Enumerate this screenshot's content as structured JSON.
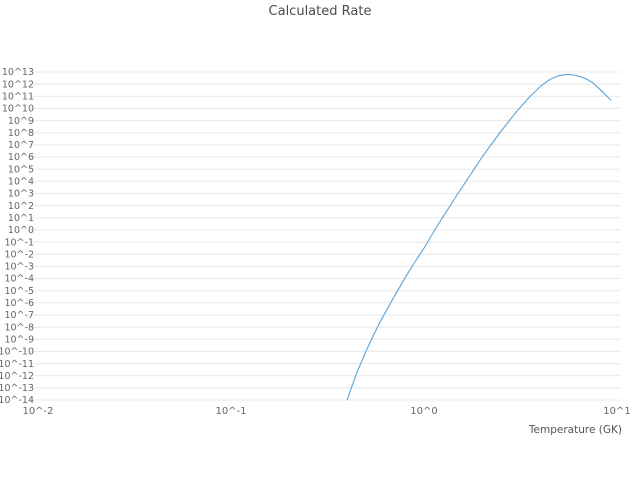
{
  "title": "Calculated Rate",
  "chart_data": {
    "type": "line",
    "title": "Calculated Rate",
    "xlabel": "Temperature (GK)",
    "ylabel": "",
    "x_scale": "log",
    "y_scale": "log",
    "x_exp_range": [
      -2,
      1
    ],
    "y_exp_range": [
      -14,
      13
    ],
    "x_tick_exponents": [
      -2,
      -1,
      0,
      1
    ],
    "x_tick_labels": [
      "10^-2",
      "10^-1",
      "10^0",
      "10^1"
    ],
    "y_tick_exponents": [
      13,
      12,
      11,
      10,
      9,
      8,
      7,
      6,
      5,
      4,
      3,
      2,
      1,
      0,
      -1,
      -2,
      -3,
      -4,
      -5,
      -6,
      -7,
      -8,
      -9,
      -10,
      -11,
      -12,
      -13,
      -14
    ],
    "grid": {
      "horizontal": true,
      "vertical": false,
      "color": "#e8e8e8"
    },
    "legend": "none",
    "text_color": "#666666",
    "series": [
      {
        "name": "calculated-rate",
        "color": "#5ca4d9",
        "y_format": "log10(rate)",
        "points": [
          [
            0.4,
            -14.0
          ],
          [
            0.42,
            -13.0
          ],
          [
            0.45,
            -11.7
          ],
          [
            0.5,
            -10.0
          ],
          [
            0.55,
            -8.6
          ],
          [
            0.6,
            -7.4
          ],
          [
            0.7,
            -5.5
          ],
          [
            0.8,
            -3.9
          ],
          [
            0.9,
            -2.6
          ],
          [
            1.0,
            -1.5
          ],
          [
            1.2,
            0.6
          ],
          [
            1.5,
            3.0
          ],
          [
            1.8,
            4.9
          ],
          [
            2.0,
            6.0
          ],
          [
            2.5,
            8.1
          ],
          [
            3.0,
            9.7
          ],
          [
            3.5,
            10.9
          ],
          [
            4.0,
            11.8
          ],
          [
            4.5,
            12.4
          ],
          [
            5.0,
            12.7
          ],
          [
            5.5,
            12.8
          ],
          [
            6.0,
            12.75
          ],
          [
            6.5,
            12.6
          ],
          [
            7.0,
            12.4
          ],
          [
            7.5,
            12.1
          ],
          [
            8.0,
            11.7
          ],
          [
            8.5,
            11.3
          ],
          [
            9.0,
            10.9
          ],
          [
            9.3,
            10.7
          ]
        ]
      }
    ]
  }
}
